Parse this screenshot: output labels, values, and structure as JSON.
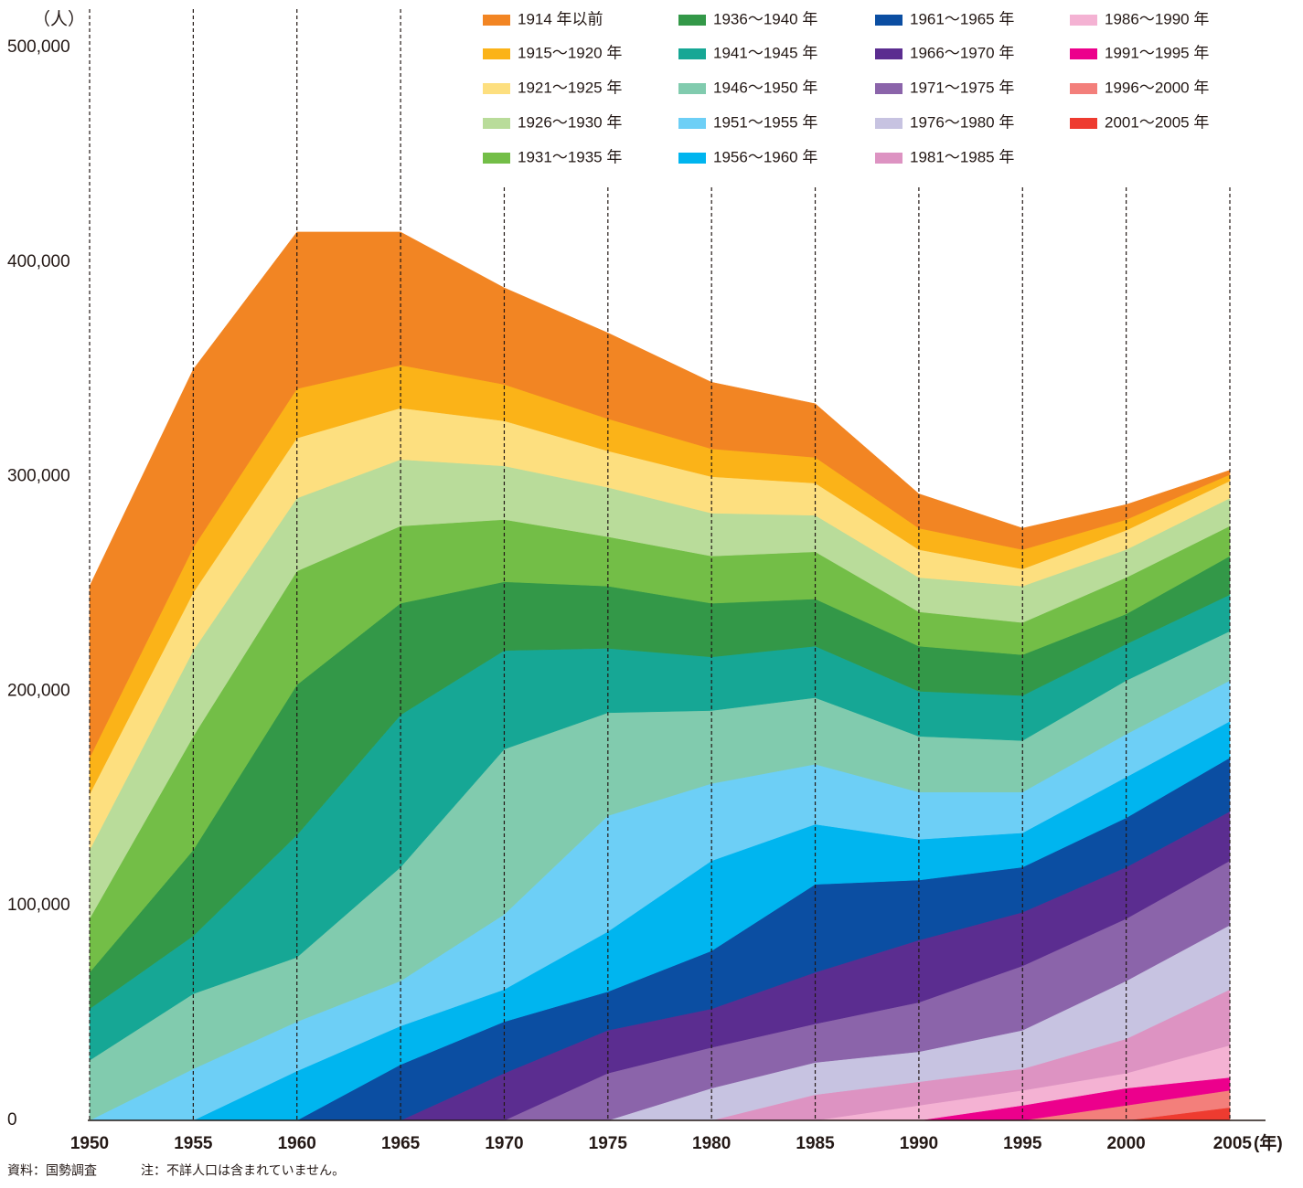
{
  "chart_data": {
    "type": "stacked-area",
    "y_unit": "（人）",
    "x_unit": "(年)",
    "source": "資料：国勢調査",
    "note": "注：不詳人口は含まれていません。",
    "x": [
      1950,
      1955,
      1960,
      1965,
      1970,
      1975,
      1980,
      1985,
      1990,
      1995,
      2000,
      2005
    ],
    "ylim": [
      0,
      500000
    ],
    "yticks": [
      0,
      {
        "value": 100000,
        "label": "100,000"
      },
      {
        "value": 200000,
        "label": "200,000"
      },
      {
        "value": 300000,
        "label": "300,000"
      },
      {
        "value": 400000,
        "label": "400,000"
      },
      {
        "value": 500000,
        "label": "500,000"
      }
    ],
    "grid": false,
    "legend": "top-right",
    "series": [
      {
        "name": "1914 年以前",
        "color": "#f28523",
        "values": [
          80000,
          83000,
          73000,
          62000,
          45000,
          40000,
          31000,
          25000,
          16000,
          10000,
          7000,
          2000
        ]
      },
      {
        "name": "1915〜1920 年",
        "color": "#fbb318",
        "values": [
          17000,
          21000,
          23000,
          20000,
          17000,
          15000,
          13000,
          12000,
          10000,
          9000,
          5000,
          3000
        ]
      },
      {
        "name": "1921〜1925 年",
        "color": "#fddf7f",
        "values": [
          26000,
          27000,
          28000,
          24000,
          21000,
          17000,
          17000,
          15000,
          13000,
          8000,
          9000,
          8000
        ]
      },
      {
        "name": "1926〜1930 年",
        "color": "#b9dc9a",
        "values": [
          32000,
          40000,
          34000,
          31000,
          25000,
          23000,
          20000,
          17000,
          16000,
          17000,
          13000,
          13000
        ]
      },
      {
        "name": "1931〜1935 年",
        "color": "#73be47",
        "values": [
          25000,
          53000,
          53000,
          36000,
          29000,
          23000,
          22000,
          22000,
          16000,
          15000,
          17000,
          14000
        ]
      },
      {
        "name": "1936〜1940 年",
        "color": "#339848",
        "values": [
          17000,
          40000,
          70000,
          52000,
          32000,
          29000,
          25000,
          22000,
          21000,
          19000,
          14000,
          18000
        ]
      },
      {
        "name": "1941〜1945 年",
        "color": "#16a795",
        "values": [
          24000,
          27000,
          57000,
          71000,
          46000,
          30000,
          25000,
          24000,
          21000,
          21000,
          17000,
          17000
        ]
      },
      {
        "name": "1946〜1950 年",
        "color": "#81cbae",
        "values": [
          28000,
          35000,
          30000,
          53000,
          77000,
          48000,
          34000,
          31000,
          26000,
          24000,
          25000,
          23000
        ]
      },
      {
        "name": "1951〜1955 年",
        "color": "#6dcff6",
        "values": [
          0,
          24000,
          23000,
          21000,
          35000,
          54000,
          36000,
          28000,
          22000,
          19000,
          20000,
          19000
        ]
      },
      {
        "name": "1956〜1960 年",
        "color": "#00b5ef",
        "values": [
          0,
          0,
          23000,
          18000,
          15000,
          28000,
          42000,
          28000,
          19000,
          16000,
          19000,
          17000
        ]
      },
      {
        "name": "1961〜1965 年",
        "color": "#0b4ea2",
        "values": [
          0,
          0,
          0,
          26000,
          24000,
          18000,
          27000,
          41000,
          28000,
          21000,
          23000,
          25000
        ]
      },
      {
        "name": "1966〜1970 年",
        "color": "#5b2d90",
        "values": [
          0,
          0,
          0,
          0,
          22000,
          20000,
          18000,
          24000,
          29000,
          25000,
          24000,
          23000
        ]
      },
      {
        "name": "1971〜1975 年",
        "color": "#8b64aa",
        "values": [
          0,
          0,
          0,
          0,
          0,
          22000,
          19000,
          18000,
          23000,
          30000,
          29000,
          30000
        ]
      },
      {
        "name": "1976〜1980 年",
        "color": "#c7c3e1",
        "values": [
          0,
          0,
          0,
          0,
          0,
          0,
          15000,
          15000,
          14000,
          18000,
          27000,
          30000
        ]
      },
      {
        "name": "1981〜1985 年",
        "color": "#dd93c2",
        "values": [
          0,
          0,
          0,
          0,
          0,
          0,
          0,
          12000,
          11000,
          10000,
          16000,
          26000
        ]
      },
      {
        "name": "1986〜1990 年",
        "color": "#f4b2d3",
        "values": [
          0,
          0,
          0,
          0,
          0,
          0,
          0,
          0,
          7000,
          7000,
          7000,
          15000
        ]
      },
      {
        "name": "1991〜1995 年",
        "color": "#ec008c",
        "values": [
          0,
          0,
          0,
          0,
          0,
          0,
          0,
          0,
          0,
          7000,
          8000,
          6000
        ]
      },
      {
        "name": "1996〜2000 年",
        "color": "#f37f7b",
        "values": [
          0,
          0,
          0,
          0,
          0,
          0,
          0,
          0,
          0,
          0,
          7000,
          8000
        ]
      },
      {
        "name": "2001〜2005 年",
        "color": "#ee3b30",
        "values": [
          0,
          0,
          0,
          0,
          0,
          0,
          0,
          0,
          0,
          0,
          0,
          6000
        ]
      }
    ]
  }
}
